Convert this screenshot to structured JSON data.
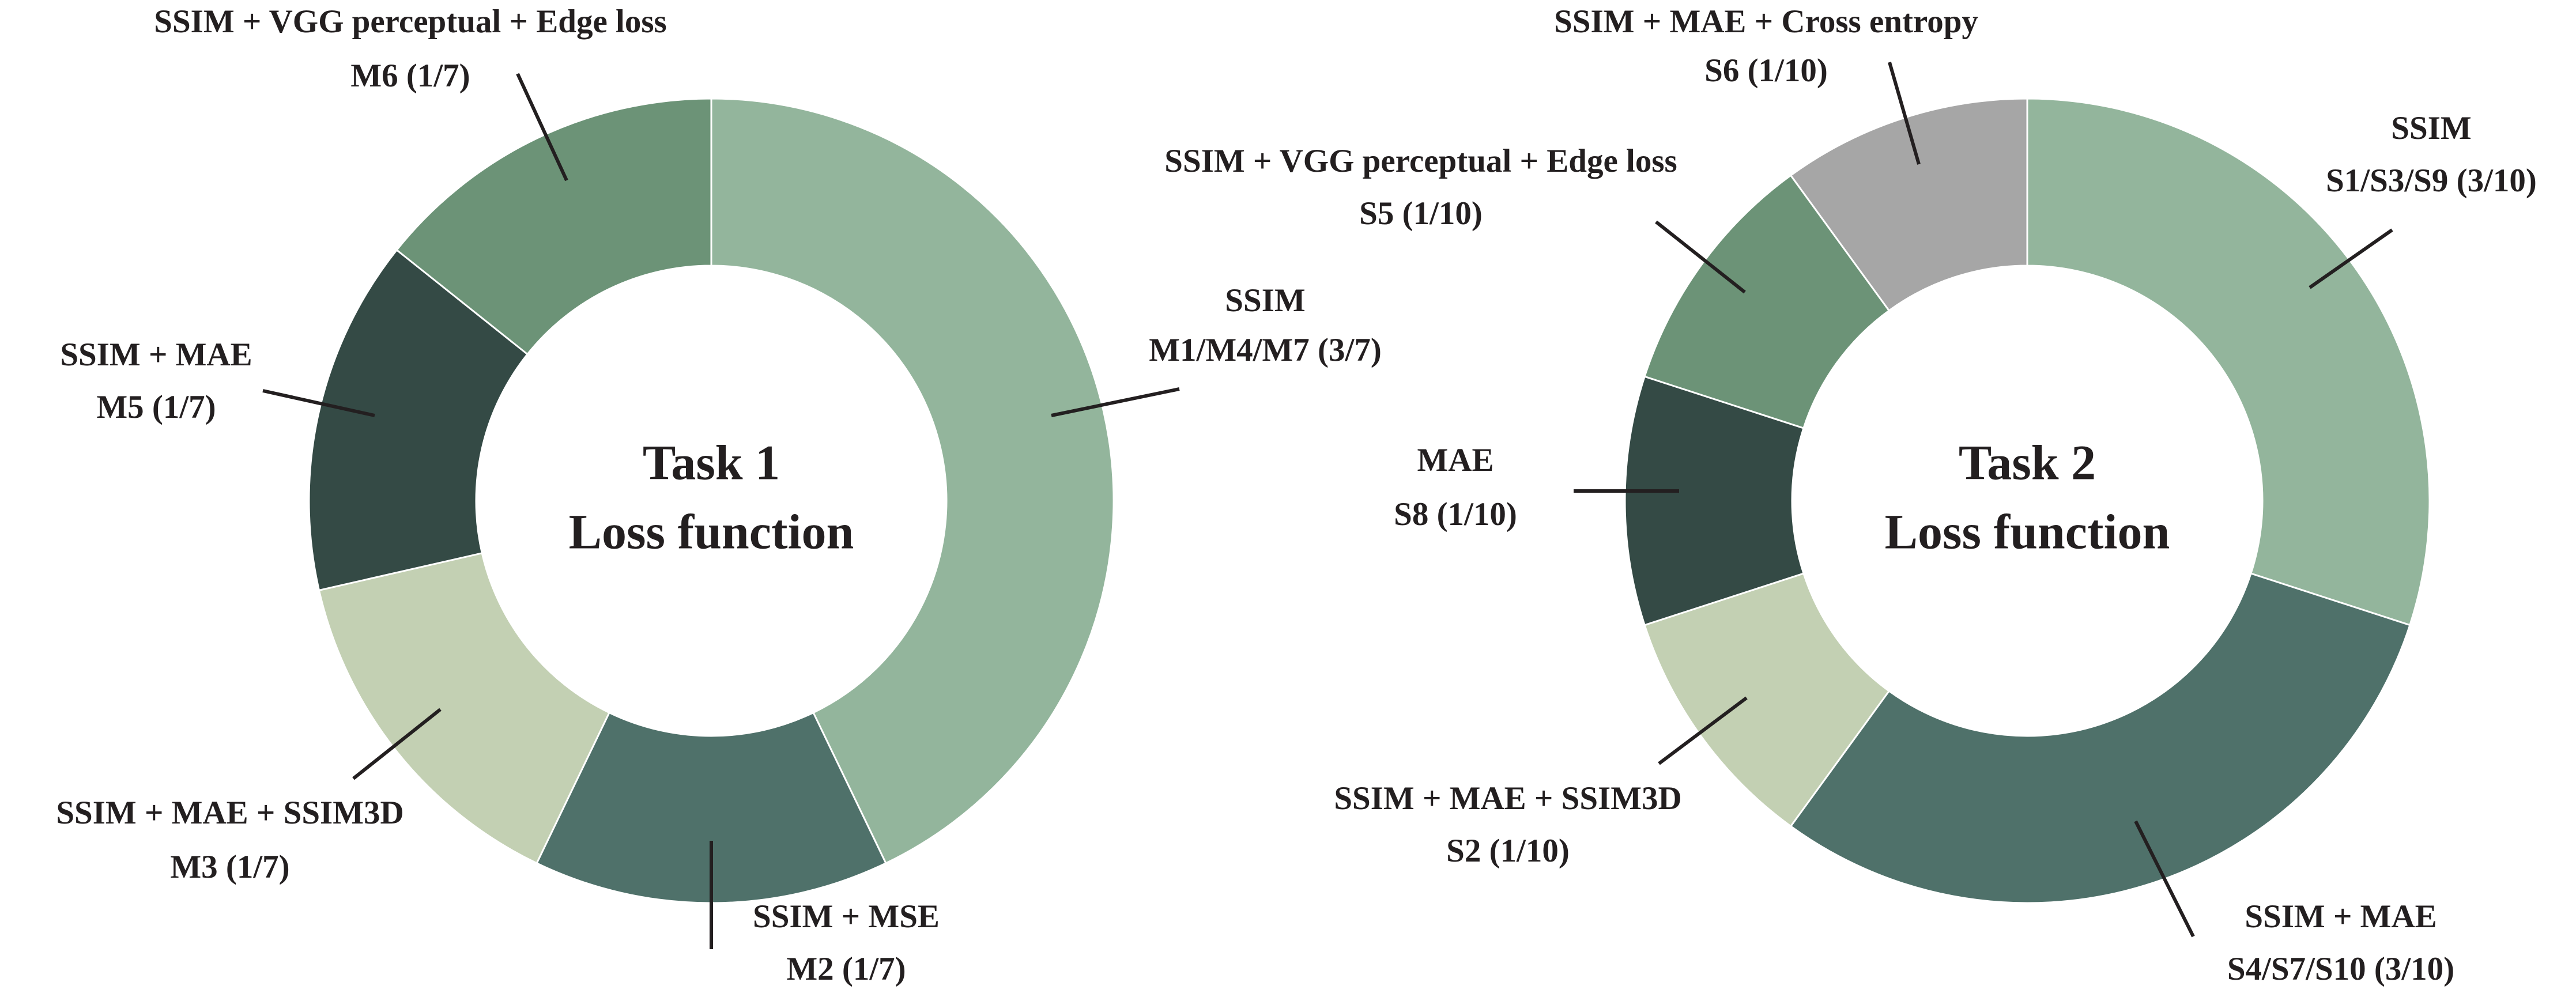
{
  "chart_data": [
    {
      "type": "donut",
      "center_text": [
        "Task 1",
        "Loss function"
      ],
      "categories": [
        "SSIM",
        "SSIM + MSE",
        "SSIM + MAE + SSIM3D",
        "SSIM + MAE",
        "SSIM + VGG perceptual + Edge loss"
      ],
      "values": [
        3,
        1,
        1,
        1,
        1
      ],
      "value_labels": [
        "M1/M4/M7 (3/7)",
        "M2 (1/7)",
        "M3 (1/7)",
        "M5 (1/7)",
        "M6 (1/7)"
      ],
      "colors": [
        "#93b59c",
        "#4f716a",
        "#c3d0b3",
        "#344a45",
        "#6c9377"
      ]
    },
    {
      "type": "donut",
      "center_text": [
        "Task 2",
        "Loss function"
      ],
      "categories": [
        "SSIM",
        "SSIM + MAE",
        "SSIM + MAE + SSIM3D",
        "MAE",
        "SSIM + VGG perceptual + Edge loss",
        "SSIM + MAE + Cross entropy"
      ],
      "values": [
        3,
        3,
        1,
        1,
        1,
        1
      ],
      "value_labels": [
        "S1/S3/S9 (3/10)",
        "S4/S7/S10 (3/10)",
        "S2 (1/10)",
        "S8 (1/10)",
        "S5 (1/10)",
        "S6 (1/10)"
      ],
      "colors": [
        "#93b59c",
        "#4f716a",
        "#c3d0b3",
        "#344a45",
        "#6c9377",
        "#a6a6a6"
      ]
    }
  ]
}
